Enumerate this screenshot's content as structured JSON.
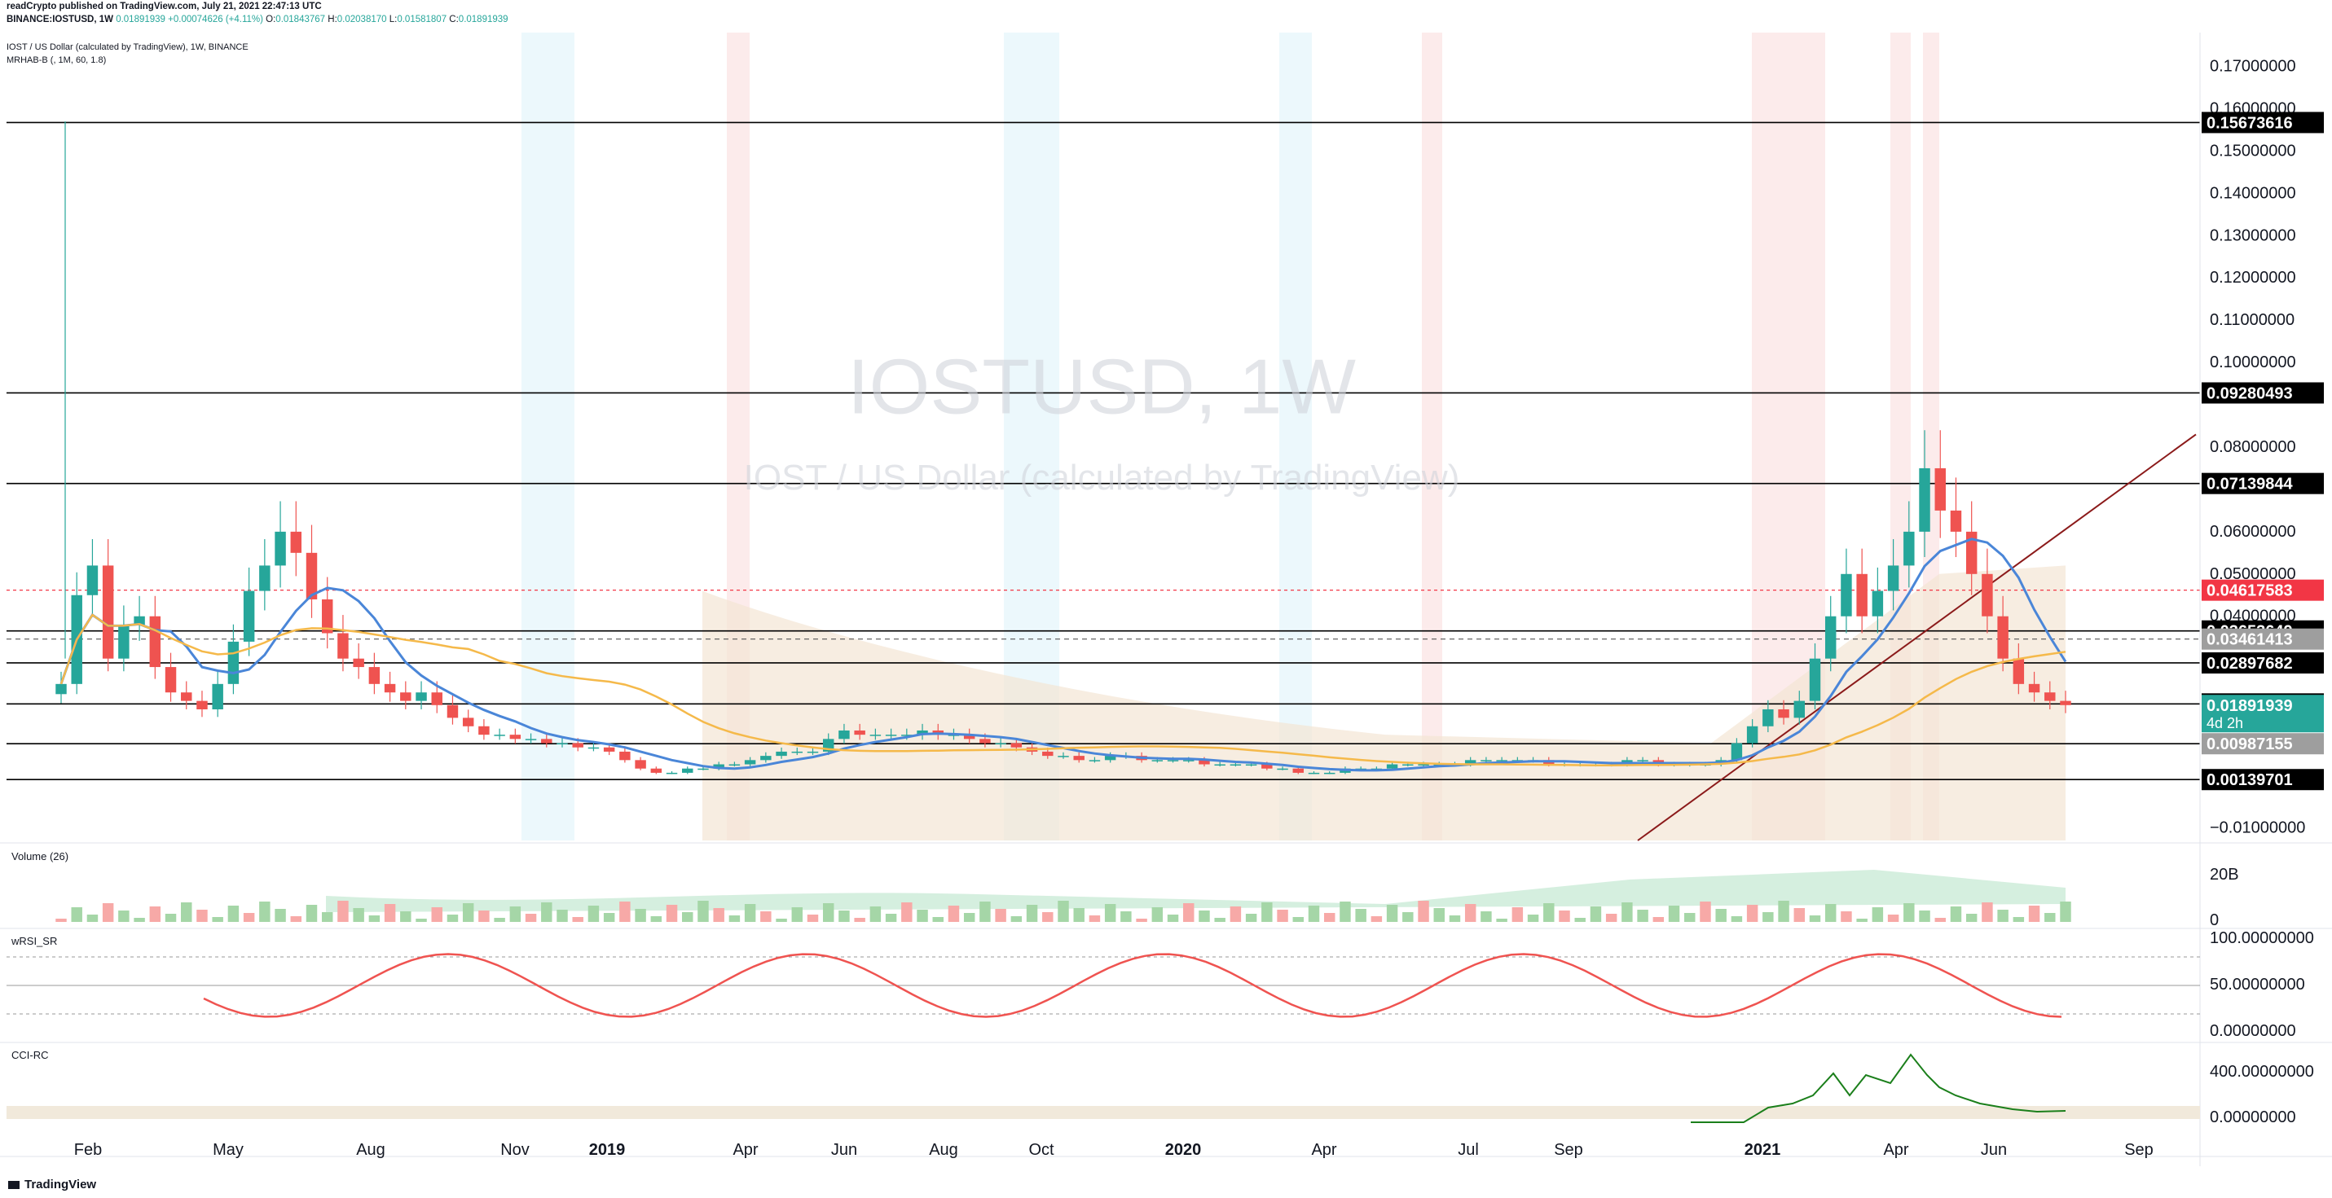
{
  "header": {
    "publisher_line": "readCrypto published on TradingView.com, July 21, 2021 22:47:13 UTC",
    "symbol_line": "BINANCE:IOSTUSD, 1W",
    "last": "0.01891939",
    "change": "+0.00074626 (+4.11%)",
    "open_label": "O:",
    "open": "0.01843767",
    "high_label": "H:",
    "high": "0.02038170",
    "low_label": "L:",
    "low": "0.01581807",
    "close_label": "C:",
    "close": "0.01891939"
  },
  "legend": {
    "title": "IOST / US Dollar (calculated by TradingView), 1W, BINANCE",
    "indicator": "MRHAB-B (, 1M, 60, 1.8)"
  },
  "watermark": {
    "symbol": "IOSTUSD, 1W",
    "name": "IOST / US Dollar (calculated by TradingView)"
  },
  "panes": {
    "volume": "Volume (26)",
    "rsi": "wRSI_SR",
    "cci": "CCI-RC"
  },
  "footer": {
    "brand": "TradingView"
  },
  "colors": {
    "up": "#26a69a",
    "down": "#ef5350",
    "accent_red": "#f23645",
    "blue_line": "#4a86d8",
    "orange_line": "#f5b94a",
    "dark_red": "#8b1a1a",
    "cloud": "#f4e6d4",
    "highlight_blue": "#e7f6fb",
    "highlight_red": "#fbe6e6"
  },
  "chart_data": [
    {
      "type": "candlestick",
      "title": "IOSTUSD, 1W",
      "x_ticks": [
        "Feb",
        "May",
        "Aug",
        "Nov",
        "2019",
        "Apr",
        "Jun",
        "Aug",
        "Oct",
        "2020",
        "Apr",
        "Jul",
        "Sep",
        "2021",
        "Apr",
        "Jun",
        "Sep"
      ],
      "y_ticks": [
        "0.17000000",
        "0.16000000",
        "0.15000000",
        "0.14000000",
        "0.13000000",
        "0.12000000",
        "0.11000000",
        "0.10000000",
        "0.08000000",
        "0.06000000",
        "0.05000000",
        "0.04000000",
        "0.02000000",
        "0.01000000",
        "−0.01000000"
      ],
      "ylim": [
        -0.013,
        0.178
      ],
      "horizontal_levels": [
        0.15673616,
        0.09280493,
        0.07139844,
        0.03653649,
        0.02897682,
        0.01928636,
        0.00987155,
        0.00139701
      ],
      "price_labels": [
        {
          "text": "0.15673616",
          "value": 0.15673616,
          "color": "#000000"
        },
        {
          "text": "0.09280493",
          "value": 0.09280493,
          "color": "#000000"
        },
        {
          "text": "0.07139844",
          "value": 0.07139844,
          "color": "#000000"
        },
        {
          "text": "0.04617583",
          "value": 0.04617583,
          "color": "#f23645"
        },
        {
          "text": "0.03653649",
          "value": 0.03653649,
          "color": "#000000"
        },
        {
          "text": "0.03461413",
          "value": 0.03461413,
          "color": "#9e9e9e"
        },
        {
          "text": "0.02897682",
          "value": 0.02897682,
          "color": "#000000"
        },
        {
          "text": "0.01928636",
          "value": 0.01928636,
          "color": "#000000"
        },
        {
          "text": "0.01891939",
          "value": 0.01891939,
          "color": "#26a69a",
          "sub": "4d 2h"
        },
        {
          "text": "0.00987155",
          "value": 0.00987155,
          "color": "#9e9e9e"
        },
        {
          "text": "0.00139701",
          "value": 0.00139701,
          "color": "#000000"
        }
      ],
      "close_series": [
        0.024,
        0.045,
        0.052,
        0.03,
        0.038,
        0.04,
        0.028,
        0.022,
        0.02,
        0.018,
        0.024,
        0.034,
        0.046,
        0.052,
        0.06,
        0.055,
        0.044,
        0.036,
        0.03,
        0.028,
        0.024,
        0.022,
        0.02,
        0.022,
        0.019,
        0.016,
        0.014,
        0.012,
        0.012,
        0.011,
        0.011,
        0.01,
        0.01,
        0.009,
        0.009,
        0.008,
        0.006,
        0.004,
        0.003,
        0.003,
        0.004,
        0.004,
        0.005,
        0.005,
        0.006,
        0.007,
        0.008,
        0.008,
        0.008,
        0.011,
        0.013,
        0.012,
        0.012,
        0.012,
        0.012,
        0.013,
        0.012,
        0.012,
        0.011,
        0.01,
        0.01,
        0.009,
        0.008,
        0.007,
        0.007,
        0.006,
        0.006,
        0.007,
        0.007,
        0.006,
        0.006,
        0.006,
        0.006,
        0.005,
        0.005,
        0.005,
        0.005,
        0.004,
        0.004,
        0.003,
        0.003,
        0.003,
        0.004,
        0.004,
        0.004,
        0.005,
        0.005,
        0.005,
        0.005,
        0.005,
        0.006,
        0.006,
        0.006,
        0.006,
        0.006,
        0.005,
        0.005,
        0.005,
        0.005,
        0.005,
        0.006,
        0.006,
        0.005,
        0.005,
        0.005,
        0.005,
        0.006,
        0.01,
        0.014,
        0.018,
        0.016,
        0.02,
        0.03,
        0.04,
        0.05,
        0.04,
        0.046,
        0.052,
        0.06,
        0.075,
        0.065,
        0.06,
        0.05,
        0.04,
        0.03,
        0.024,
        0.022,
        0.02,
        0.019
      ]
    },
    {
      "type": "bar",
      "title": "Volume (26)",
      "y_ticks": [
        "20B",
        "0"
      ]
    },
    {
      "type": "line",
      "title": "wRSI_SR",
      "y_ticks": [
        "100.00000000",
        "50.00000000",
        "0.00000000"
      ],
      "ylim": [
        0,
        100
      ]
    },
    {
      "type": "line",
      "title": "CCI-RC",
      "y_ticks": [
        "400.00000000",
        "0.00000000"
      ]
    }
  ]
}
